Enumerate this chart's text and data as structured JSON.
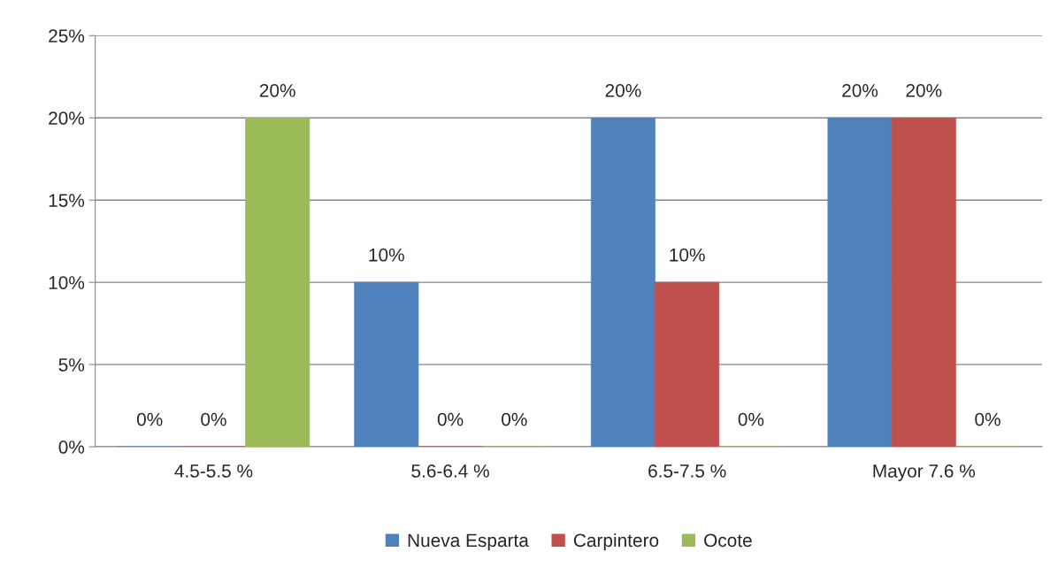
{
  "chart_data": {
    "type": "bar",
    "categories": [
      "4.5-5.5 %",
      "5.6-6.4 %",
      "6.5-7.5 %",
      "Mayor 7.6 %"
    ],
    "series": [
      {
        "name": "Nueva Esparta",
        "color": "#4f81bd",
        "values": [
          0,
          10,
          20,
          20
        ],
        "value_labels": [
          "0%",
          "10%",
          "20%",
          "20%"
        ]
      },
      {
        "name": "Carpintero",
        "color": "#c0504d",
        "values": [
          0,
          0,
          10,
          20
        ],
        "value_labels": [
          "0%",
          "0%",
          "10%",
          "20%"
        ]
      },
      {
        "name": "Ocote",
        "color": "#9bbb59",
        "values": [
          20,
          0,
          0,
          0
        ],
        "value_labels": [
          "20%",
          "0%",
          "0%",
          "0%"
        ]
      }
    ],
    "ylim": [
      0,
      25
    ],
    "yticks": [
      {
        "value": 0,
        "label": "0%"
      },
      {
        "value": 5,
        "label": "5%"
      },
      {
        "value": 10,
        "label": "10%"
      },
      {
        "value": 15,
        "label": "15%"
      },
      {
        "value": 20,
        "label": "20%"
      },
      {
        "value": 25,
        "label": "25%"
      }
    ],
    "grid": "y",
    "legend": "bottom"
  }
}
